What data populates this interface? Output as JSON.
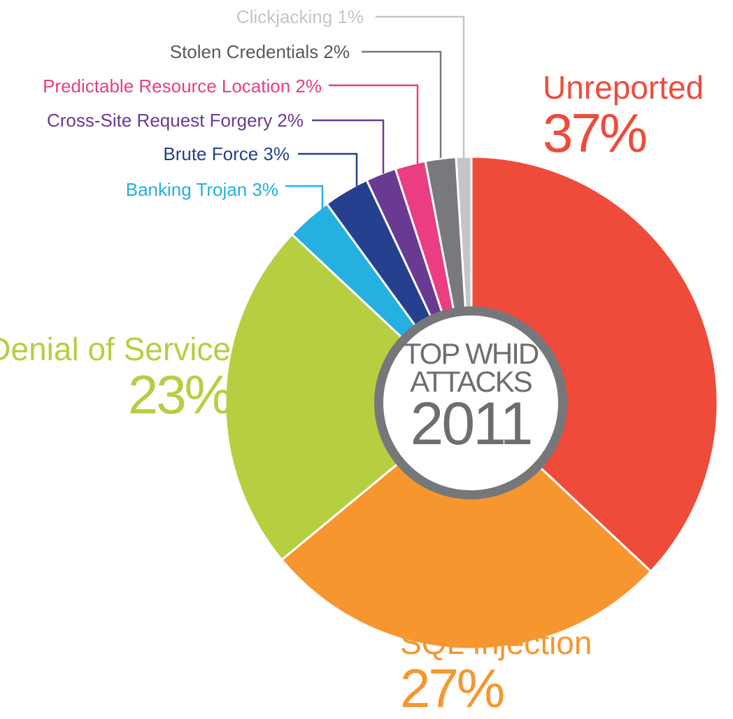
{
  "center": {
    "line1": "TOP WHID",
    "line2": "ATTACKS",
    "line3": "2011"
  },
  "colors": {
    "unreported": "#ef4b3b",
    "sql_injection": "#f7962f",
    "denial_of_service": "#b5cf41",
    "banking_trojan": "#25b0e2",
    "brute_force": "#24408e",
    "csrf": "#6a3a93",
    "predictable_resource": "#ea3d82",
    "stolen_credentials": "#78797c",
    "clickjacking": "#c4c5c7",
    "ring": "#76777a"
  },
  "labels": {
    "unreported": {
      "name": "Unreported",
      "pct": "37%"
    },
    "sql_injection": {
      "name": "SQL Injection",
      "pct": "27%"
    },
    "denial_of_service": {
      "name": "Denial of Service",
      "pct": "23%"
    },
    "banking_trojan": "Banking Trojan 3%",
    "brute_force": "Brute Force 3%",
    "csrf": "Cross-Site Request Forgery 2%",
    "predictable_resource": "Predictable Resource Location 2%",
    "stolen_credentials": "Stolen Credentials 2%",
    "clickjacking": "Clickjacking 1%"
  },
  "chart_data": {
    "type": "pie",
    "title": "TOP WHID ATTACKS 2011",
    "units": "%",
    "slices": [
      {
        "label": "Unreported",
        "value": 37,
        "color": "#ef4b3b"
      },
      {
        "label": "SQL Injection",
        "value": 27,
        "color": "#f7962f"
      },
      {
        "label": "Denial of Service",
        "value": 23,
        "color": "#b5cf41"
      },
      {
        "label": "Banking Trojan",
        "value": 3,
        "color": "#25b0e2"
      },
      {
        "label": "Brute Force",
        "value": 3,
        "color": "#24408e"
      },
      {
        "label": "Cross-Site Request Forgery",
        "value": 2,
        "color": "#6a3a93"
      },
      {
        "label": "Predictable Resource Location",
        "value": 2,
        "color": "#ea3d82"
      },
      {
        "label": "Stolen Credentials",
        "value": 2,
        "color": "#78797c"
      },
      {
        "label": "Clickjacking",
        "value": 1,
        "color": "#c4c5c7"
      }
    ]
  }
}
